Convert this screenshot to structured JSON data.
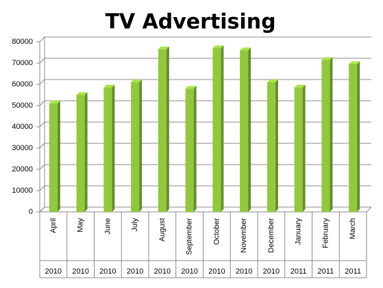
{
  "chart_data": {
    "type": "bar3d",
    "title": "TV Advertising",
    "categories": [
      "April",
      "May",
      "June",
      "July",
      "August",
      "September",
      "October",
      "November",
      "December",
      "January",
      "February",
      "March"
    ],
    "groups": [
      "2010",
      "2010",
      "2010",
      "2010",
      "2010",
      "2010",
      "2010",
      "2010",
      "2010",
      "2011",
      "2011",
      "2011"
    ],
    "values": [
      51000,
      55000,
      58500,
      61000,
      76500,
      58000,
      77000,
      76000,
      61000,
      58500,
      71500,
      69500
    ],
    "color": "#92c83e",
    "ylim": [
      0,
      80000
    ],
    "yticks": [
      0,
      10000,
      20000,
      30000,
      40000,
      50000,
      60000,
      70000,
      80000
    ],
    "grid": true
  }
}
